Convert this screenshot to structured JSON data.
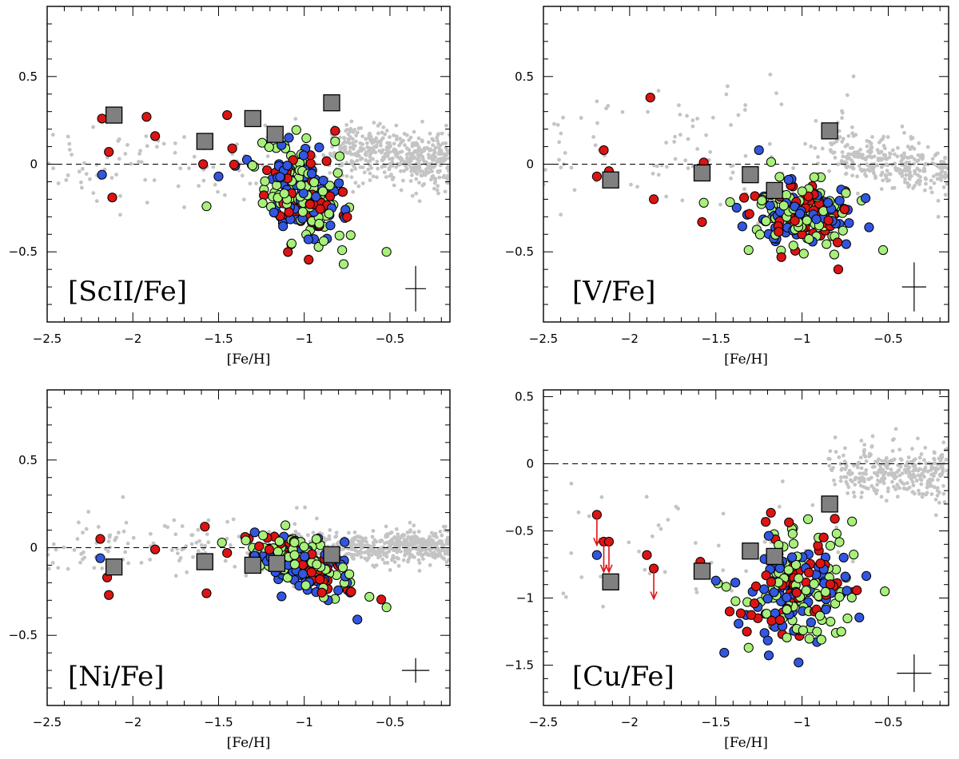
{
  "chart_data": [
    {
      "type": "scatter",
      "panel_label": "[ScII/Fe]",
      "xlabel": "[Fe/H]",
      "ylabel": "",
      "xlim": [
        -2.5,
        -0.15
      ],
      "ylim": [
        -0.9,
        0.9
      ],
      "xticks": [
        -2.5,
        -2,
        -1.5,
        -1,
        -0.5
      ],
      "xtick_labels": [
        "−2.5",
        "−2",
        "−1.5",
        "−1",
        "−0.5"
      ],
      "yticks": [
        -0.5,
        0,
        0.5
      ],
      "ytick_labels": [
        "−0.5",
        "0",
        "0.5"
      ],
      "reference_line": 0,
      "error_bar": {
        "x": -0.35,
        "y": -0.71,
        "dx": 0.06,
        "dy": 0.13
      },
      "background": {
        "metal_poor_mean": 0.0,
        "metal_poor_spread": 0.12,
        "disk_start": -0.85,
        "disk_mean": 0.1,
        "disk_slope": -0.15,
        "disk_spread": 0.08,
        "count_poor": 120,
        "count_disk": 450
      },
      "cluster": {
        "center": [
          -1.02,
          -0.17
        ],
        "spread": [
          0.13,
          0.14
        ],
        "tilt": -0.3,
        "counts": {
          "green": 85,
          "blue": 75,
          "red": 45
        }
      },
      "red_extra": [
        [
          -2.18,
          0.26
        ],
        [
          -2.14,
          0.07
        ],
        [
          -2.12,
          -0.19
        ],
        [
          -1.92,
          0.27
        ],
        [
          -1.87,
          0.16
        ],
        [
          -1.59,
          0.0
        ],
        [
          -1.45,
          0.28
        ],
        [
          -1.42,
          0.09
        ],
        [
          -1.28,
          0.27
        ],
        [
          -0.82,
          0.19
        ]
      ],
      "blue_extra": [
        [
          -2.18,
          -0.06
        ],
        [
          -1.5,
          -0.07
        ]
      ],
      "green_extra": [
        [
          -1.57,
          -0.24
        ],
        [
          -0.82,
          0.13
        ],
        [
          -0.52,
          -0.5
        ],
        [
          -0.77,
          -0.57
        ]
      ],
      "squares": [
        [
          -2.11,
          0.28
        ],
        [
          -1.58,
          0.13
        ],
        [
          -1.3,
          0.26
        ],
        [
          -1.17,
          0.17
        ],
        [
          -0.84,
          0.35
        ]
      ],
      "arrows": []
    },
    {
      "type": "scatter",
      "panel_label": "[V/Fe]",
      "xlabel": "[Fe/H]",
      "ylabel": "",
      "xlim": [
        -2.5,
        -0.15
      ],
      "ylim": [
        -0.9,
        0.9
      ],
      "xticks": [
        -2.5,
        -2,
        -1.5,
        -1,
        -0.5
      ],
      "xtick_labels": [
        "−2.5",
        "−2",
        "−1.5",
        "−1",
        "−0.5"
      ],
      "yticks": [
        -0.5,
        0,
        0.5
      ],
      "ytick_labels": [
        "−0.5",
        "0",
        "0.5"
      ],
      "reference_line": 0,
      "error_bar": {
        "x": -0.35,
        "y": -0.7,
        "dx": 0.07,
        "dy": 0.14
      },
      "background": {
        "metal_poor_mean": 0.1,
        "metal_poor_spread": 0.18,
        "disk_start": -0.85,
        "disk_mean": 0.08,
        "disk_slope": -0.2,
        "disk_spread": 0.07,
        "count_poor": 110,
        "count_disk": 300
      },
      "cluster": {
        "center": [
          -1.0,
          -0.27
        ],
        "spread": [
          0.15,
          0.09
        ],
        "tilt": 0.0,
        "counts": {
          "green": 85,
          "blue": 70,
          "red": 55
        }
      },
      "red_extra": [
        [
          -2.15,
          0.08
        ],
        [
          -2.19,
          -0.07
        ],
        [
          -2.12,
          -0.04
        ],
        [
          -1.88,
          0.38
        ],
        [
          -1.86,
          -0.2
        ],
        [
          -1.58,
          -0.33
        ],
        [
          -1.57,
          0.01
        ],
        [
          -1.12,
          -0.53
        ],
        [
          -0.79,
          -0.6
        ]
      ],
      "blue_extra": [
        [
          -1.25,
          0.08
        ]
      ],
      "green_extra": [
        [
          -1.31,
          -0.49
        ],
        [
          -0.53,
          -0.49
        ],
        [
          -1.57,
          -0.22
        ]
      ],
      "squares": [
        [
          -2.11,
          -0.09
        ],
        [
          -1.58,
          -0.05
        ],
        [
          -1.3,
          -0.06
        ],
        [
          -1.16,
          -0.15
        ],
        [
          -0.84,
          0.19
        ]
      ],
      "arrows": []
    },
    {
      "type": "scatter",
      "panel_label": "[Ni/Fe]",
      "xlabel": "[Fe/H]",
      "ylabel": "",
      "xlim": [
        -2.5,
        -0.15
      ],
      "ylim": [
        -0.9,
        0.9
      ],
      "xticks": [
        -2.5,
        -2,
        -1.5,
        -1,
        -0.5
      ],
      "xtick_labels": [
        "−2.5",
        "−2",
        "−1.5",
        "−1",
        "−0.5"
      ],
      "yticks": [
        -0.5,
        0,
        0.5
      ],
      "ytick_labels": [
        "−0.5",
        "0",
        "0.5"
      ],
      "reference_line": 0,
      "error_bar": {
        "x": -0.35,
        "y": -0.7,
        "dx": 0.08,
        "dy": 0.07
      },
      "background": {
        "metal_poor_mean": 0.02,
        "metal_poor_spread": 0.09,
        "disk_start": -1.05,
        "disk_mean": 0.0,
        "disk_slope": 0.0,
        "disk_spread": 0.045,
        "count_poor": 130,
        "count_disk": 520
      },
      "cluster": {
        "center": [
          -1.02,
          -0.08
        ],
        "spread": [
          0.14,
          0.07
        ],
        "tilt": -0.35,
        "counts": {
          "green": 90,
          "blue": 75,
          "red": 50
        }
      },
      "red_extra": [
        [
          -2.19,
          0.05
        ],
        [
          -2.14,
          -0.27
        ],
        [
          -2.15,
          -0.17
        ],
        [
          -1.87,
          -0.01
        ],
        [
          -1.58,
          0.12
        ],
        [
          -1.57,
          -0.26
        ],
        [
          -1.45,
          -0.03
        ]
      ],
      "blue_extra": [
        [
          -2.19,
          -0.06
        ],
        [
          -0.69,
          -0.41
        ]
      ],
      "green_extra": [
        [
          -0.52,
          -0.34
        ],
        [
          -0.62,
          -0.28
        ]
      ],
      "squares": [
        [
          -2.11,
          -0.11
        ],
        [
          -1.58,
          -0.08
        ],
        [
          -1.3,
          -0.1
        ],
        [
          -1.16,
          -0.09
        ],
        [
          -0.84,
          -0.04
        ]
      ],
      "arrows": []
    },
    {
      "type": "scatter",
      "panel_label": "[Cu/Fe]",
      "xlabel": "[Fe/H]",
      "ylabel": "",
      "xlim": [
        -2.5,
        -0.15
      ],
      "ylim": [
        -1.8,
        0.55
      ],
      "xticks": [
        -2.5,
        -2,
        -1.5,
        -1,
        -0.5
      ],
      "xtick_labels": [
        "−2.5",
        "−2",
        "−1.5",
        "−1",
        "−0.5"
      ],
      "yticks": [
        -1.5,
        -1,
        -0.5,
        0,
        0.5
      ],
      "ytick_labels": [
        "−1.5",
        "−1",
        "−0.5",
        "0",
        "0.5"
      ],
      "reference_line": 0,
      "error_bar": {
        "x": -0.35,
        "y": -1.56,
        "dx": 0.1,
        "dy": 0.14
      },
      "background": {
        "metal_poor_mean": -0.6,
        "metal_poor_spread": 0.3,
        "disk_start": -0.85,
        "disk_mean": -0.05,
        "disk_slope": -0.05,
        "disk_spread": 0.1,
        "count_poor": 45,
        "count_disk": 320
      },
      "cluster": {
        "center": [
          -1.02,
          -0.95
        ],
        "spread": [
          0.16,
          0.19
        ],
        "tilt": 0.0,
        "counts": {
          "green": 85,
          "blue": 70,
          "red": 50
        }
      },
      "red_extra": [
        [
          -2.19,
          -0.38
        ],
        [
          -2.15,
          -0.58
        ],
        [
          -2.12,
          -0.58
        ],
        [
          -1.9,
          -0.68
        ],
        [
          -1.86,
          -0.78
        ],
        [
          -1.59,
          -0.73
        ],
        [
          -1.42,
          -1.1
        ],
        [
          -1.32,
          -1.25
        ],
        [
          -0.81,
          -0.41
        ]
      ],
      "blue_extra": [
        [
          -2.19,
          -0.68
        ],
        [
          -1.02,
          -1.48
        ],
        [
          -1.5,
          -0.87
        ]
      ],
      "green_extra": [
        [
          -1.31,
          -1.37
        ],
        [
          -0.71,
          -0.43
        ],
        [
          -0.52,
          -0.95
        ]
      ],
      "squares": [
        [
          -2.11,
          -0.88
        ],
        [
          -1.58,
          -0.8
        ],
        [
          -1.3,
          -0.65
        ],
        [
          -1.16,
          -0.69
        ],
        [
          -0.84,
          -0.3
        ]
      ],
      "arrows": [
        [
          -2.19,
          -0.38
        ],
        [
          -2.15,
          -0.58
        ],
        [
          -2.12,
          -0.58
        ],
        [
          -1.86,
          -0.78
        ]
      ]
    }
  ],
  "colors": {
    "background_points": "#c4c4c4",
    "green": "#a8f07a",
    "blue": "#3256e0",
    "red": "#dc1414",
    "square": "#808080",
    "arrow": "#dc1414"
  }
}
